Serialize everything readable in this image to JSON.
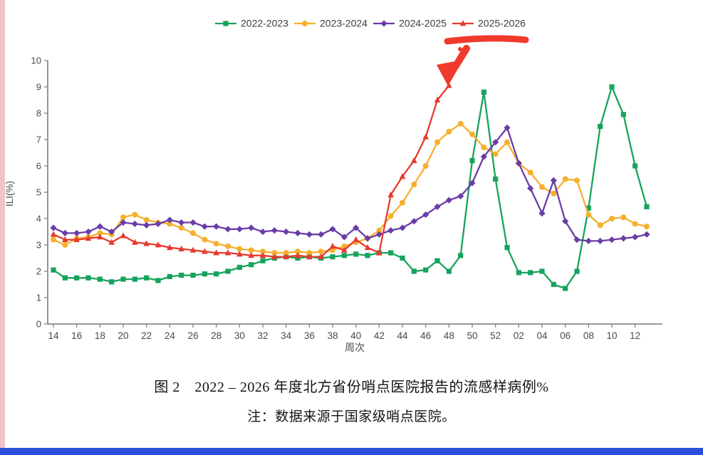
{
  "caption": {
    "title": "图 2　2022 – 2026 年度北方省份哨点医院报告的流感样病例%",
    "note": "注：数据来源于国家级哨点医院。"
  },
  "axes": {
    "ylabel": "ILI(%)",
    "xlabel": "周次",
    "ymin": 0,
    "ymax": 10,
    "ytick_step": 1,
    "xtick_labels": [
      "14",
      "16",
      "18",
      "20",
      "22",
      "24",
      "26",
      "28",
      "30",
      "32",
      "34",
      "36",
      "38",
      "40",
      "42",
      "44",
      "46",
      "48",
      "50",
      "52",
      "02",
      "04",
      "06",
      "08",
      "10",
      "12"
    ]
  },
  "chart_data": {
    "type": "line",
    "title": "图 2　2022 – 2026 年度北方省份哨点医院报告的流感样病例%",
    "xlabel": "周次",
    "ylabel": "ILI(%)",
    "ylim": [
      0,
      10
    ],
    "grid": false,
    "legend_position": "top",
    "x": [
      "14",
      "15",
      "16",
      "17",
      "18",
      "19",
      "20",
      "21",
      "22",
      "23",
      "24",
      "25",
      "26",
      "27",
      "28",
      "29",
      "30",
      "31",
      "32",
      "33",
      "34",
      "35",
      "36",
      "37",
      "38",
      "39",
      "40",
      "41",
      "42",
      "43",
      "44",
      "45",
      "46",
      "47",
      "48",
      "49",
      "50",
      "51",
      "52",
      "01",
      "02",
      "03",
      "04",
      "05",
      "06",
      "07",
      "08",
      "09",
      "10",
      "11",
      "12",
      "13"
    ],
    "series": [
      {
        "name": "2022-2023",
        "color": "#17a35c",
        "marker": "square",
        "values": [
          2.05,
          1.75,
          1.75,
          1.75,
          1.7,
          1.6,
          1.7,
          1.7,
          1.75,
          1.65,
          1.8,
          1.85,
          1.85,
          1.9,
          1.9,
          2.0,
          2.15,
          2.25,
          2.4,
          2.5,
          2.55,
          2.5,
          2.55,
          2.5,
          2.55,
          2.6,
          2.65,
          2.6,
          2.7,
          2.7,
          2.5,
          2.0,
          2.05,
          2.4,
          2.0,
          2.6,
          6.2,
          8.8,
          5.5,
          2.9,
          1.95,
          1.95,
          2.0,
          1.5,
          1.35,
          2.0,
          4.4,
          7.5,
          9.0,
          7.95,
          6.0,
          4.45
        ]
      },
      {
        "name": "2023-2024",
        "color": "#f5b02d",
        "marker": "circle",
        "values": [
          3.2,
          3.0,
          3.25,
          3.3,
          3.45,
          3.4,
          4.05,
          4.15,
          3.95,
          3.85,
          3.8,
          3.65,
          3.45,
          3.2,
          3.05,
          2.95,
          2.85,
          2.8,
          2.75,
          2.7,
          2.7,
          2.75,
          2.7,
          2.75,
          2.8,
          2.95,
          3.1,
          3.25,
          3.55,
          4.1,
          4.6,
          5.3,
          6.0,
          6.9,
          7.3,
          7.6,
          7.2,
          6.7,
          6.45,
          6.9,
          6.1,
          5.75,
          5.2,
          4.95,
          5.5,
          5.45,
          4.15,
          3.75,
          4.0,
          4.05,
          3.8,
          3.7
        ]
      },
      {
        "name": "2024-2025",
        "color": "#6a3da6",
        "marker": "diamond",
        "values": [
          3.65,
          3.45,
          3.45,
          3.5,
          3.7,
          3.5,
          3.85,
          3.8,
          3.75,
          3.8,
          3.95,
          3.85,
          3.85,
          3.7,
          3.7,
          3.6,
          3.6,
          3.65,
          3.5,
          3.55,
          3.5,
          3.45,
          3.4,
          3.4,
          3.6,
          3.3,
          3.65,
          3.25,
          3.4,
          3.55,
          3.65,
          3.9,
          4.15,
          4.45,
          4.7,
          4.85,
          5.35,
          6.35,
          6.9,
          7.45,
          6.1,
          5.15,
          4.2,
          5.45,
          3.9,
          3.2,
          3.15,
          3.15,
          3.2,
          3.25,
          3.3,
          3.4
        ]
      },
      {
        "name": "2025-2026",
        "color": "#e63a2e",
        "marker": "triangle",
        "values": [
          3.4,
          3.2,
          3.2,
          3.25,
          3.3,
          3.1,
          3.35,
          3.1,
          3.05,
          3.0,
          2.9,
          2.85,
          2.8,
          2.75,
          2.7,
          2.7,
          2.65,
          2.6,
          2.6,
          2.55,
          2.55,
          2.6,
          2.55,
          2.55,
          2.95,
          2.8,
          3.2,
          2.9,
          2.7,
          4.9,
          5.6,
          6.2,
          7.1,
          8.5,
          9.05,
          null,
          null,
          null,
          null,
          null,
          null,
          null,
          null,
          null,
          null,
          null,
          null,
          null,
          null,
          null,
          null,
          null
        ]
      }
    ]
  },
  "annotations": {
    "underline": "hand-drawn red underline beneath the 2025-2026 legend entry",
    "arrow": "hand-drawn red arrow pointing at the last 2025-2026 point (week 48, 9.05)",
    "color": "#f03a2c"
  },
  "decorations": {
    "left_strip_color": "#f0c3ca",
    "bottom_bar_color": "#2c50d9"
  }
}
